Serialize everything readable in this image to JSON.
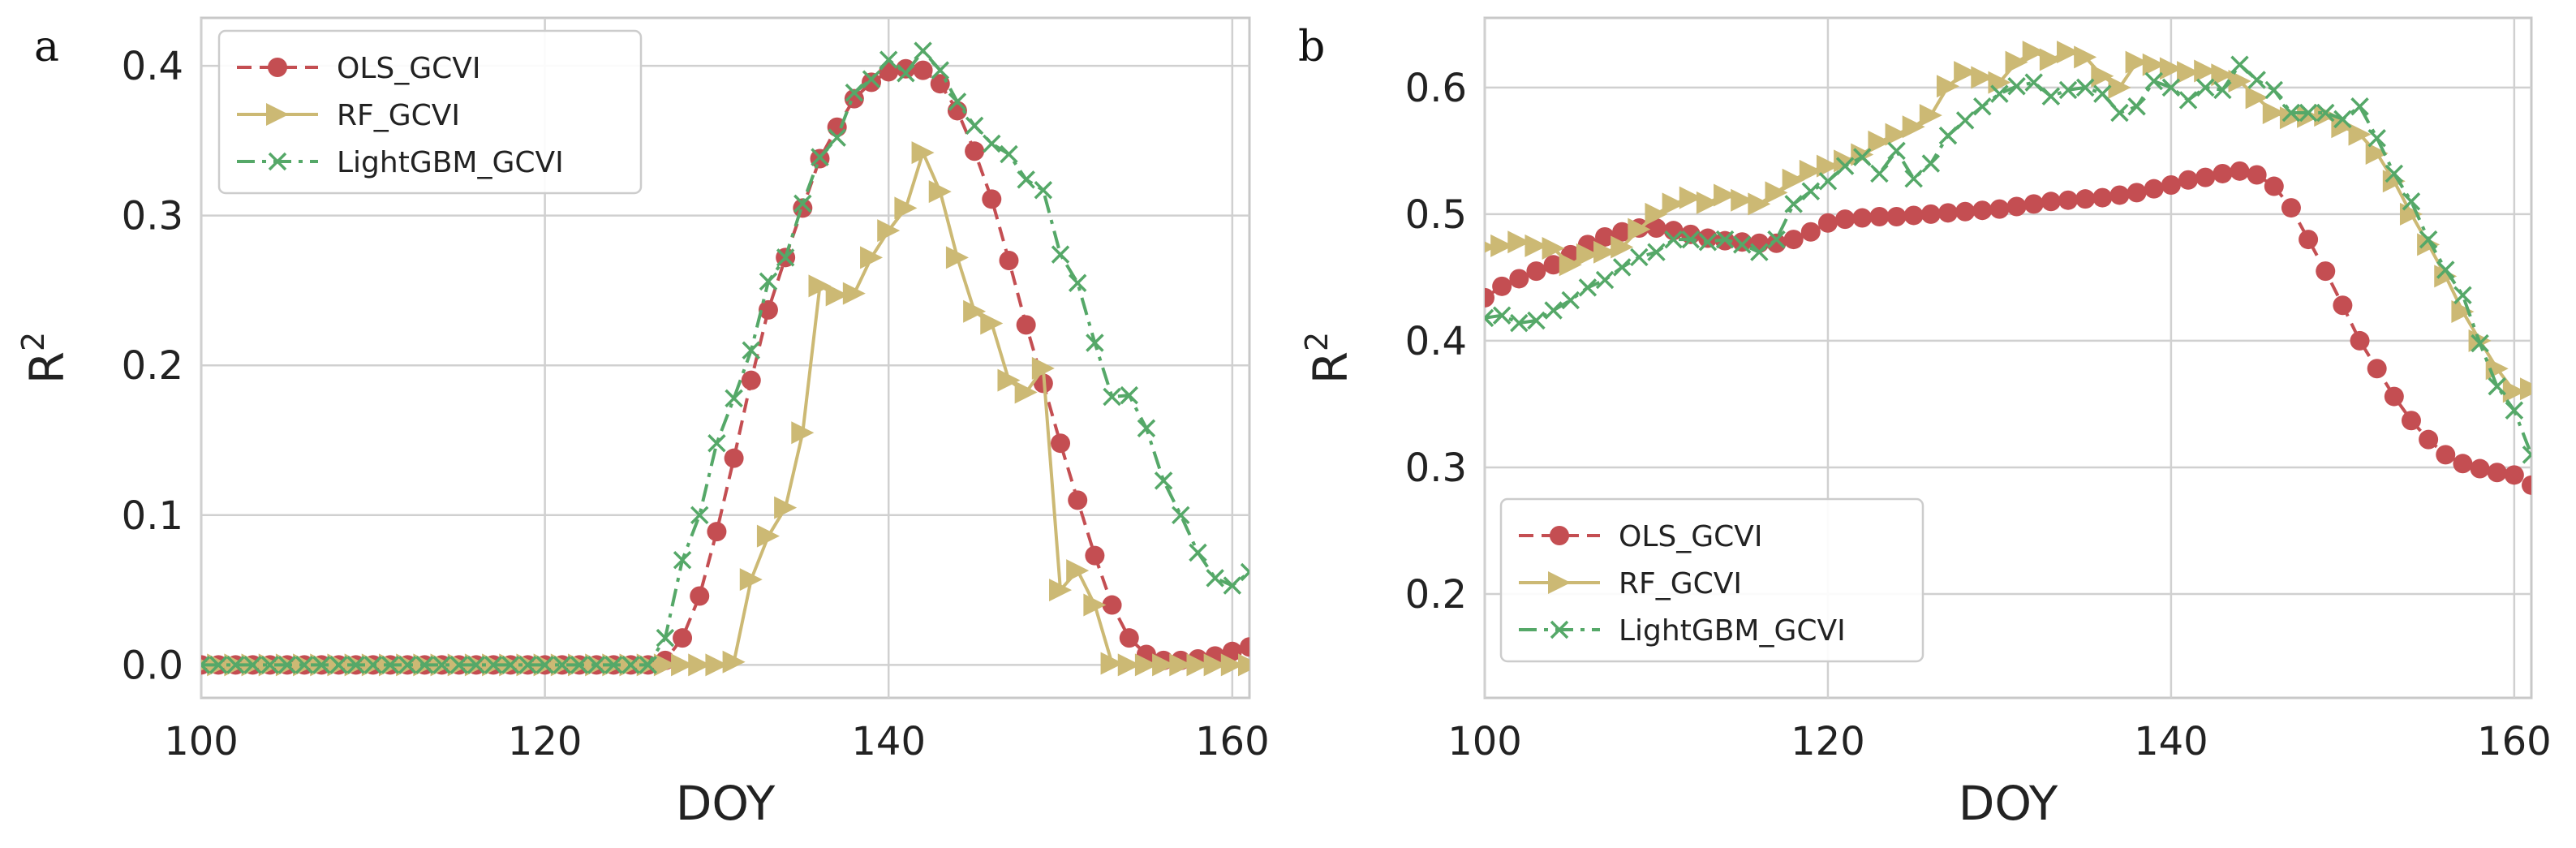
{
  "colors": {
    "ols": "#c44e52",
    "rf": "#ccb974",
    "lgbm": "#55a868",
    "grid": "#d0d0d0",
    "frame": "#c8c8c8"
  },
  "chart_data": [
    {
      "panel": "a",
      "type": "line",
      "xlabel": "DOY",
      "ylabel": "R",
      "ylabel_superscript": "2",
      "xlim": [
        100,
        161
      ],
      "ylim": [
        -0.022,
        0.432
      ],
      "xticks": [
        100,
        120,
        140,
        160
      ],
      "yticks": [
        0.0,
        0.1,
        0.2,
        0.3,
        0.4
      ],
      "xtick_labels": [
        "100",
        "120",
        "140",
        "160"
      ],
      "ytick_labels": [
        "0.0",
        "0.1",
        "0.2",
        "0.3",
        "0.4"
      ],
      "grid": true,
      "legend_position": "upper-left",
      "x": [
        100,
        101,
        102,
        103,
        104,
        105,
        106,
        107,
        108,
        109,
        110,
        111,
        112,
        113,
        114,
        115,
        116,
        117,
        118,
        119,
        120,
        121,
        122,
        123,
        124,
        125,
        126,
        127,
        128,
        129,
        130,
        131,
        132,
        133,
        134,
        135,
        136,
        137,
        138,
        139,
        140,
        141,
        142,
        143,
        144,
        145,
        146,
        147,
        148,
        149,
        150,
        151,
        152,
        153,
        154,
        155,
        156,
        157,
        158,
        159,
        160,
        161
      ],
      "series": [
        {
          "name": "OLS_GCVI",
          "key": "ols",
          "values": [
            0,
            0,
            0,
            0,
            0,
            0,
            0,
            0,
            0,
            0,
            0,
            0,
            0,
            0,
            0,
            0,
            0,
            0,
            0,
            0,
            0,
            0,
            0,
            0,
            0,
            0,
            0,
            0.003,
            0.018,
            0.046,
            0.089,
            0.138,
            0.19,
            0.237,
            0.272,
            0.305,
            0.338,
            0.359,
            0.378,
            0.389,
            0.396,
            0.398,
            0.397,
            0.388,
            0.37,
            0.343,
            0.311,
            0.27,
            0.227,
            0.188,
            0.148,
            0.11,
            0.073,
            0.04,
            0.018,
            0.007,
            0.003,
            0.003,
            0.004,
            0.006,
            0.009,
            0.012
          ]
        },
        {
          "name": "RF_GCVI",
          "key": "rf",
          "values": [
            0,
            0,
            0,
            0,
            0,
            0,
            0,
            0,
            0,
            0,
            0,
            0,
            0,
            0,
            0,
            0,
            0,
            0,
            0,
            0,
            0,
            0,
            0,
            0,
            0,
            0,
            0,
            0,
            0,
            0,
            0,
            0.002,
            0.057,
            0.086,
            0.105,
            0.155,
            0.253,
            0.247,
            0.248,
            0.272,
            0.29,
            0.305,
            0.342,
            0.316,
            0.272,
            0.236,
            0.228,
            0.19,
            0.182,
            0.198,
            0.05,
            0.063,
            0.04,
            0.001,
            0,
            0,
            0,
            0,
            0,
            0,
            0,
            0
          ]
        },
        {
          "name": "LightGBM_GCVI",
          "key": "lgbm",
          "values": [
            0,
            0,
            0,
            0,
            0,
            0,
            0,
            0,
            0,
            0,
            0,
            0,
            0,
            0,
            0,
            0,
            0,
            0,
            0,
            0,
            0,
            0,
            0,
            0,
            0,
            0,
            0,
            0.018,
            0.07,
            0.1,
            0.148,
            0.178,
            0.21,
            0.256,
            0.272,
            0.308,
            0.339,
            0.352,
            0.382,
            0.391,
            0.404,
            0.395,
            0.41,
            0.397,
            0.376,
            0.36,
            0.348,
            0.341,
            0.324,
            0.317,
            0.274,
            0.255,
            0.215,
            0.179,
            0.18,
            0.158,
            0.123,
            0.1,
            0.075,
            0.058,
            0.053,
            0.062
          ]
        }
      ]
    },
    {
      "panel": "b",
      "type": "line",
      "xlabel": "DOY",
      "ylabel": "R",
      "ylabel_superscript": "2",
      "xlim": [
        100,
        161
      ],
      "ylim": [
        0.118,
        0.655
      ],
      "xticks": [
        100,
        120,
        140,
        160
      ],
      "yticks": [
        0.2,
        0.3,
        0.4,
        0.5,
        0.6
      ],
      "xtick_labels": [
        "100",
        "120",
        "140",
        "160"
      ],
      "ytick_labels": [
        "0.2",
        "0.3",
        "0.4",
        "0.5",
        "0.6"
      ],
      "grid": true,
      "legend_position": "lower-left",
      "x": [
        100,
        101,
        102,
        103,
        104,
        105,
        106,
        107,
        108,
        109,
        110,
        111,
        112,
        113,
        114,
        115,
        116,
        117,
        118,
        119,
        120,
        121,
        122,
        123,
        124,
        125,
        126,
        127,
        128,
        129,
        130,
        131,
        132,
        133,
        134,
        135,
        136,
        137,
        138,
        139,
        140,
        141,
        142,
        143,
        144,
        145,
        146,
        147,
        148,
        149,
        150,
        151,
        152,
        153,
        154,
        155,
        156,
        157,
        158,
        159,
        160,
        161
      ],
      "series": [
        {
          "name": "OLS_GCVI",
          "key": "ols",
          "values": [
            0.434,
            0.443,
            0.449,
            0.455,
            0.46,
            0.468,
            0.476,
            0.482,
            0.486,
            0.489,
            0.489,
            0.487,
            0.484,
            0.481,
            0.479,
            0.478,
            0.477,
            0.477,
            0.48,
            0.486,
            0.493,
            0.496,
            0.497,
            0.498,
            0.498,
            0.499,
            0.5,
            0.501,
            0.502,
            0.503,
            0.504,
            0.506,
            0.508,
            0.51,
            0.511,
            0.512,
            0.513,
            0.515,
            0.517,
            0.52,
            0.523,
            0.527,
            0.529,
            0.532,
            0.534,
            0.531,
            0.522,
            0.505,
            0.48,
            0.455,
            0.428,
            0.4,
            0.378,
            0.356,
            0.337,
            0.322,
            0.31,
            0.303,
            0.299,
            0.296,
            0.294,
            0.286
          ]
        },
        {
          "name": "RF_GCVI",
          "key": "rf",
          "values": [
            0.474,
            0.475,
            0.478,
            0.475,
            0.473,
            0.46,
            0.468,
            0.47,
            0.474,
            0.488,
            0.5,
            0.508,
            0.513,
            0.509,
            0.515,
            0.511,
            0.508,
            0.517,
            0.527,
            0.534,
            0.538,
            0.542,
            0.547,
            0.557,
            0.563,
            0.569,
            0.578,
            0.601,
            0.612,
            0.608,
            0.604,
            0.62,
            0.628,
            0.622,
            0.628,
            0.624,
            0.609,
            0.6,
            0.62,
            0.618,
            0.615,
            0.612,
            0.613,
            0.61,
            0.605,
            0.592,
            0.58,
            0.576,
            0.577,
            0.578,
            0.569,
            0.563,
            0.548,
            0.526,
            0.5,
            0.476,
            0.451,
            0.423,
            0.4,
            0.378,
            0.36,
            0.362
          ]
        },
        {
          "name": "LightGBM_GCVI",
          "key": "lgbm",
          "values": [
            0.418,
            0.42,
            0.414,
            0.416,
            0.424,
            0.432,
            0.442,
            0.448,
            0.458,
            0.466,
            0.47,
            0.48,
            0.48,
            0.478,
            0.48,
            0.476,
            0.47,
            0.48,
            0.508,
            0.518,
            0.526,
            0.538,
            0.545,
            0.532,
            0.55,
            0.528,
            0.54,
            0.562,
            0.574,
            0.585,
            0.595,
            0.601,
            0.604,
            0.593,
            0.598,
            0.6,
            0.595,
            0.58,
            0.585,
            0.605,
            0.6,
            0.59,
            0.6,
            0.598,
            0.618,
            0.606,
            0.598,
            0.58,
            0.58,
            0.58,
            0.575,
            0.585,
            0.56,
            0.532,
            0.51,
            0.48,
            0.456,
            0.436,
            0.398,
            0.364,
            0.345,
            0.31
          ]
        }
      ]
    }
  ]
}
